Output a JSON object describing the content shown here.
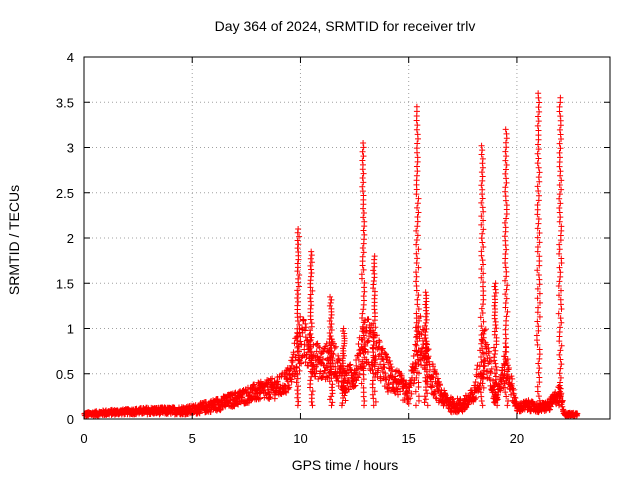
{
  "chart_data": {
    "type": "scatter",
    "title": "Day 364 of 2024, SRMTID for receiver trlv",
    "xlabel": "GPS time / hours",
    "ylabel": "SRMTID / TECUs",
    "xlim": [
      0,
      24.3
    ],
    "ylim": [
      0,
      4
    ],
    "xticks": [
      0,
      5,
      10,
      15,
      20
    ],
    "xtick_labels": [
      "0",
      "5",
      "10",
      "15",
      "20"
    ],
    "yticks": [
      0,
      0.5,
      1,
      1.5,
      2,
      2.5,
      3,
      3.5,
      4
    ],
    "ytick_labels": [
      "0",
      "0.5",
      "1",
      "1.5",
      "2",
      "2.5",
      "3",
      "3.5",
      "4"
    ],
    "grid": true,
    "marker": "+",
    "color": "#ff0000",
    "series": [
      {
        "name": "SRMTID",
        "envelope": [
          [
            0.0,
            0.05,
            0.02
          ],
          [
            1.0,
            0.07,
            0.03
          ],
          [
            2.0,
            0.08,
            0.03
          ],
          [
            3.0,
            0.09,
            0.04
          ],
          [
            4.0,
            0.09,
            0.04
          ],
          [
            5.0,
            0.1,
            0.05
          ],
          [
            6.0,
            0.15,
            0.07
          ],
          [
            7.0,
            0.22,
            0.08
          ],
          [
            8.0,
            0.3,
            0.1
          ],
          [
            9.0,
            0.35,
            0.12
          ],
          [
            9.5,
            0.45,
            0.15
          ],
          [
            10.0,
            0.9,
            0.3
          ],
          [
            10.5,
            0.7,
            0.2
          ],
          [
            11.0,
            0.6,
            0.2
          ],
          [
            11.5,
            0.7,
            0.2
          ],
          [
            12.0,
            0.4,
            0.15
          ],
          [
            12.5,
            0.5,
            0.15
          ],
          [
            13.0,
            0.9,
            0.3
          ],
          [
            13.5,
            0.7,
            0.25
          ],
          [
            14.0,
            0.5,
            0.2
          ],
          [
            14.5,
            0.4,
            0.15
          ],
          [
            15.0,
            0.25,
            0.1
          ],
          [
            15.5,
            0.9,
            0.3
          ],
          [
            16.0,
            0.5,
            0.2
          ],
          [
            16.5,
            0.25,
            0.1
          ],
          [
            17.0,
            0.15,
            0.08
          ],
          [
            17.5,
            0.15,
            0.08
          ],
          [
            18.0,
            0.25,
            0.1
          ],
          [
            18.5,
            0.8,
            0.3
          ],
          [
            19.0,
            0.25,
            0.1
          ],
          [
            19.5,
            0.6,
            0.2
          ],
          [
            20.0,
            0.12,
            0.05
          ],
          [
            20.5,
            0.15,
            0.06
          ],
          [
            21.0,
            0.12,
            0.05
          ],
          [
            21.5,
            0.15,
            0.06
          ],
          [
            22.0,
            0.3,
            0.1
          ],
          [
            22.2,
            0.05,
            0.02
          ],
          [
            22.8,
            0.05,
            0.02
          ]
        ],
        "peaks": [
          {
            "x": 9.9,
            "max": 2.1
          },
          {
            "x": 10.5,
            "max": 1.85
          },
          {
            "x": 11.4,
            "max": 1.35
          },
          {
            "x": 12.0,
            "max": 1.0
          },
          {
            "x": 12.9,
            "max": 3.05
          },
          {
            "x": 13.4,
            "max": 1.8
          },
          {
            "x": 15.4,
            "max": 3.45
          },
          {
            "x": 15.8,
            "max": 1.4
          },
          {
            "x": 18.4,
            "max": 3.02
          },
          {
            "x": 19.0,
            "max": 1.5
          },
          {
            "x": 19.5,
            "max": 3.2
          },
          {
            "x": 21.0,
            "max": 3.6
          },
          {
            "x": 22.0,
            "max": 3.55
          }
        ]
      }
    ]
  }
}
